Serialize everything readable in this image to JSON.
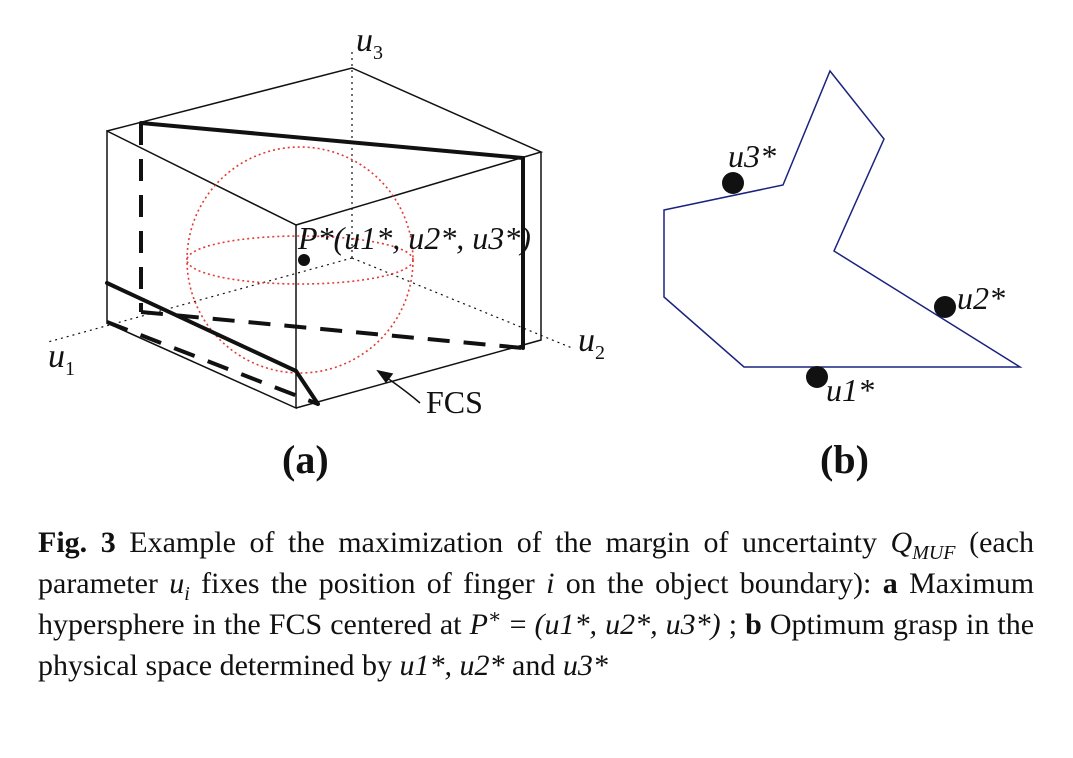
{
  "figure": {
    "panel_a": {
      "label": "(a)",
      "axis_u1": "u",
      "axis_u1_sub": "1",
      "axis_u2": "u",
      "axis_u2_sub": "2",
      "axis_u3": "u",
      "axis_u3_sub": "3",
      "point_label": "P*(u1*, u2*, u3*)",
      "region_label": "FCS"
    },
    "panel_b": {
      "label": "(b)",
      "contact_1": "u1*",
      "contact_2": "u2*",
      "contact_3": "u3*"
    },
    "colors": {
      "polygon": "#1a237e",
      "sphere": "#e53935",
      "ink": "#111111"
    }
  },
  "caption": {
    "fig_label": "Fig. 3",
    "part1": "Example of the maximization of the margin of uncertainty",
    "q_symbol": "Q",
    "q_sub": "MUF",
    "part2": "(each parameter",
    "param": "u",
    "param_sub": "i",
    "part3": "fixes the position of finger",
    "finger": "i",
    "part4": "on the object boundary):",
    "a_label": "a",
    "part5": "Maximum hypersphere in the FCS centered at",
    "p_star": "P",
    "equals": "=",
    "tuple": "(u1*, u2*, u3*)",
    "b_label": "b",
    "part6": "Optimum grasp in the physical space determined by",
    "end1": "u1*,",
    "end2": "u2*",
    "and": "and",
    "end3": "u3*"
  }
}
